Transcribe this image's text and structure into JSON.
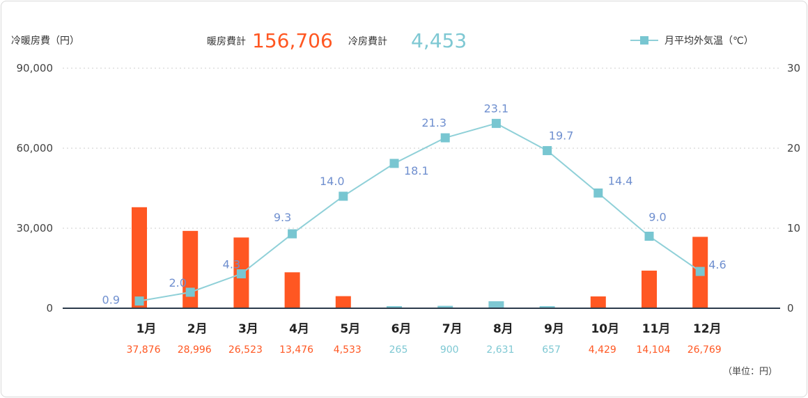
{
  "header": {
    "left_axis_title": "冷暖房費（円）",
    "heating_total_label": "暖房費計",
    "heating_total_value": "156,706",
    "cooling_total_label": "冷房費計",
    "cooling_total_value": "4,453",
    "legend_label": "月平均外気温（℃）",
    "unit_note": "（単位：円）"
  },
  "colors": {
    "heating": "#ff5722",
    "cooling": "#7ec8d3",
    "temperature_line": "#8fd0d8",
    "temperature_marker": "#78c6d1",
    "temperature_label": "#6f8fcf",
    "grid": "#d8d8d8",
    "baseline": "#2b3a4a"
  },
  "chart_data": {
    "type": "bar",
    "categories": [
      "1月",
      "2月",
      "3月",
      "4月",
      "5月",
      "6月",
      "7月",
      "8月",
      "9月",
      "10月",
      "11月",
      "12月"
    ],
    "series": [
      {
        "name": "暖房費計",
        "axis": "left",
        "values": [
          37876,
          28996,
          26523,
          13476,
          4533,
          0,
          0,
          0,
          0,
          4429,
          14104,
          26769
        ],
        "labels": [
          "37,876",
          "28,996",
          "26,523",
          "13,476",
          "4,533",
          "",
          "",
          "",
          "",
          "4,429",
          "14,104",
          "26,769"
        ]
      },
      {
        "name": "冷房費計",
        "axis": "left",
        "values": [
          0,
          0,
          0,
          0,
          0,
          265,
          900,
          2631,
          657,
          0,
          0,
          0
        ],
        "labels": [
          "",
          "",
          "",
          "",
          "",
          "265",
          "900",
          "2,631",
          "657",
          "",
          "",
          ""
        ]
      },
      {
        "name": "月平均外気温（℃）",
        "type": "line",
        "axis": "right",
        "values": [
          0.9,
          2.0,
          4.3,
          9.3,
          14.0,
          18.1,
          21.3,
          23.1,
          19.7,
          14.4,
          9.0,
          4.6
        ],
        "labels": [
          "0.9",
          "2.0",
          "4.3",
          "9.3",
          "14.0",
          "18.1",
          "21.3",
          "23.1",
          "19.7",
          "14.4",
          "9.0",
          "4.6"
        ]
      }
    ],
    "ylim": [
      0,
      90000
    ],
    "y_ticks": [
      0,
      30000,
      60000,
      90000
    ],
    "y_tick_labels": [
      "0",
      "30,000",
      "60,000",
      "90,000"
    ],
    "y2lim": [
      0,
      30
    ],
    "y2_ticks": [
      0,
      10,
      20,
      30
    ],
    "y2_tick_labels": [
      "0",
      "10",
      "20",
      "30"
    ],
    "grid": true,
    "legend_position": "top-right"
  }
}
